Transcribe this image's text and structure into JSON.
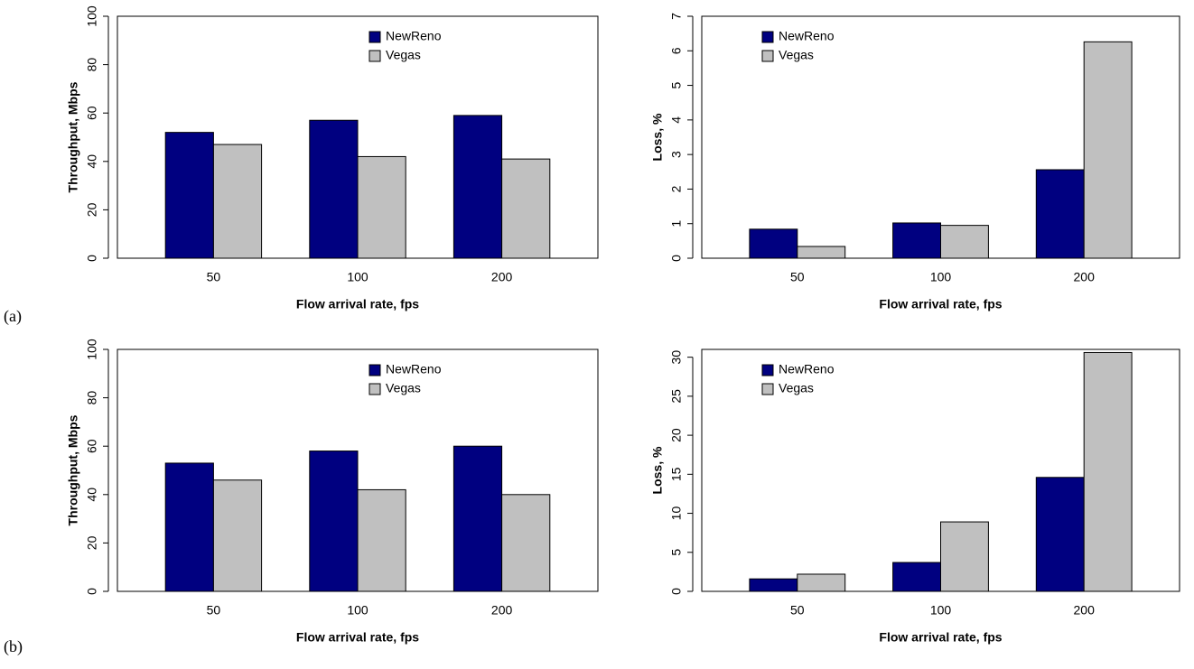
{
  "panel_labels": [
    "(a)",
    "(b)"
  ],
  "chart_data": [
    {
      "type": "bar",
      "xlabel": "Flow arrival rate, fps",
      "ylabel": "Throughput, Mbps",
      "categories": [
        "50",
        "100",
        "200"
      ],
      "series": [
        {
          "name": "NewReno",
          "color": "#000080",
          "values": [
            52,
            57,
            59
          ]
        },
        {
          "name": "Vegas",
          "color": "#c0c0c0",
          "values": [
            47,
            42,
            41
          ]
        }
      ],
      "ylim": [
        0,
        100
      ],
      "yticks": [
        0,
        20,
        40,
        60,
        80,
        100
      ]
    },
    {
      "type": "bar",
      "xlabel": "Flow arrival rate, fps",
      "ylabel": "Loss, %",
      "categories": [
        "50",
        "100",
        "200"
      ],
      "series": [
        {
          "name": "NewReno",
          "color": "#000080",
          "values": [
            0.84,
            1.02,
            2.56
          ]
        },
        {
          "name": "Vegas",
          "color": "#c0c0c0",
          "values": [
            0.34,
            0.95,
            6.26
          ]
        }
      ],
      "ylim": [
        0,
        7
      ],
      "yticks": [
        0,
        1,
        2,
        3,
        4,
        5,
        6,
        7
      ]
    },
    {
      "type": "bar",
      "xlabel": "Flow arrival rate, fps",
      "ylabel": "Throughput, Mbps",
      "categories": [
        "50",
        "100",
        "200"
      ],
      "series": [
        {
          "name": "NewReno",
          "color": "#000080",
          "values": [
            53,
            58,
            60
          ]
        },
        {
          "name": "Vegas",
          "color": "#c0c0c0",
          "values": [
            46,
            42,
            40
          ]
        }
      ],
      "ylim": [
        0,
        100
      ],
      "yticks": [
        0,
        20,
        40,
        60,
        80,
        100
      ]
    },
    {
      "type": "bar",
      "xlabel": "Flow arrival rate, fps",
      "ylabel": "Loss, %",
      "categories": [
        "50",
        "100",
        "200"
      ],
      "series": [
        {
          "name": "NewReno",
          "color": "#000080",
          "values": [
            1.6,
            3.7,
            14.6
          ]
        },
        {
          "name": "Vegas",
          "color": "#c0c0c0",
          "values": [
            2.2,
            8.9,
            30.6
          ]
        }
      ],
      "ylim": [
        0,
        31
      ],
      "yticks": [
        0,
        5,
        10,
        15,
        20,
        25,
        30
      ]
    }
  ]
}
